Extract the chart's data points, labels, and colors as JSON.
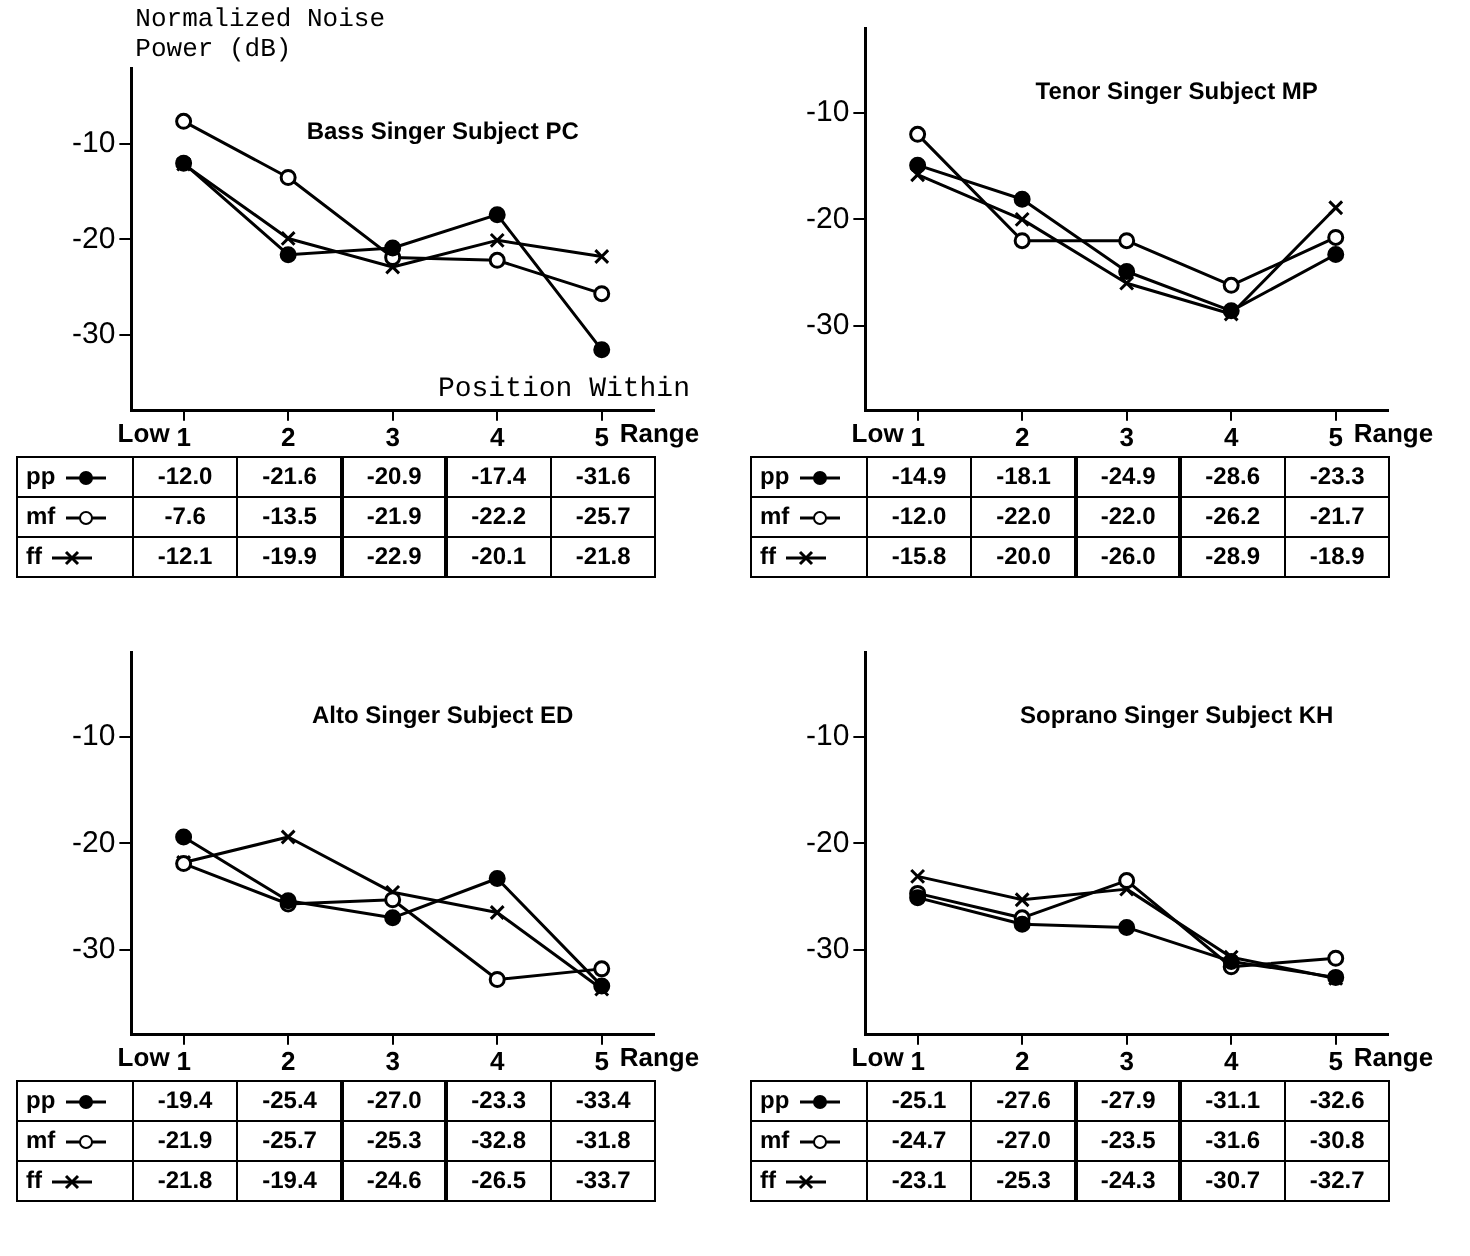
{
  "chart_data": [
    {
      "type": "line",
      "title": "Bass Singer Subject PC",
      "ylabel": "Normalized Noise Power (dB)",
      "xlabel": "Position Within",
      "annotations": [
        "Low",
        "Range"
      ],
      "categories": [
        "1",
        "2",
        "3",
        "4",
        "5"
      ],
      "ylim": [
        -38,
        -2
      ],
      "yticks": [
        -30,
        -20,
        -10
      ],
      "grid": false,
      "legend": "bottom",
      "series": [
        {
          "name": "pp",
          "color": "#000000",
          "marker": "circle",
          "values": [
            -12.0,
            -21.6,
            -20.9,
            -17.4,
            -31.6
          ],
          "value_labels": [
            "-12.0",
            "-21.6",
            "-20.9",
            "-17.4",
            "-31.6"
          ]
        },
        {
          "name": "mf",
          "color": "#000000",
          "marker": "circle",
          "values": [
            -7.6,
            -13.5,
            -21.9,
            -22.2,
            -25.7
          ],
          "value_labels": [
            "-7.6",
            "-13.5",
            "-21.9",
            "-22.2",
            "-25.7"
          ]
        },
        {
          "name": "ff",
          "color": "#000000",
          "marker": "cross",
          "values": [
            -12.1,
            -19.9,
            -22.9,
            -20.1,
            -21.8
          ],
          "value_labels": [
            "-12.1",
            "-19.9",
            "-22.9",
            "-20.1",
            "-21.8"
          ]
        }
      ]
    },
    {
      "type": "line",
      "title": "Tenor Singer Subject MP",
      "annotations": [
        "Low",
        "Range"
      ],
      "categories": [
        "1",
        "2",
        "3",
        "4",
        "5"
      ],
      "ylim": [
        -38,
        -2
      ],
      "yticks": [
        -30,
        -20,
        -10
      ],
      "grid": false,
      "legend": "bottom",
      "series": [
        {
          "name": "pp",
          "color": "#000000",
          "marker": "circle",
          "values": [
            -14.9,
            -18.1,
            -24.9,
            -28.6,
            -23.3
          ],
          "value_labels": [
            "-14.9",
            "-18.1",
            "-24.9",
            "-28.6",
            "-23.3"
          ]
        },
        {
          "name": "mf",
          "color": "#000000",
          "marker": "circle",
          "values": [
            -12.0,
            -22.0,
            -22.0,
            -26.2,
            -21.7
          ],
          "value_labels": [
            "-12.0",
            "-22.0",
            "-22.0",
            "-26.2",
            "-21.7"
          ]
        },
        {
          "name": "ff",
          "color": "#000000",
          "marker": "cross",
          "values": [
            -15.8,
            -20.0,
            -26.0,
            -28.9,
            -18.9
          ],
          "value_labels": [
            "-15.8",
            "-20.0",
            "-26.0",
            "-28.9",
            "-18.9"
          ]
        }
      ]
    },
    {
      "type": "line",
      "title": "Alto Singer Subject ED",
      "annotations": [
        "Low",
        "Range"
      ],
      "categories": [
        "1",
        "2",
        "3",
        "4",
        "5"
      ],
      "ylim": [
        -38,
        -2
      ],
      "yticks": [
        -30,
        -20,
        -10
      ],
      "grid": false,
      "legend": "bottom",
      "series": [
        {
          "name": "pp",
          "color": "#000000",
          "marker": "circle",
          "values": [
            -19.4,
            -25.4,
            -27.0,
            -23.3,
            -33.4
          ],
          "value_labels": [
            "-19.4",
            "-25.4",
            "-27.0",
            "-23.3",
            "-33.4"
          ]
        },
        {
          "name": "mf",
          "color": "#000000",
          "marker": "circle",
          "values": [
            -21.9,
            -25.7,
            -25.3,
            -32.8,
            -31.8
          ],
          "value_labels": [
            "-21.9",
            "-25.7",
            "-25.3",
            "-32.8",
            "-31.8"
          ]
        },
        {
          "name": "ff",
          "color": "#000000",
          "marker": "cross",
          "values": [
            -21.8,
            -19.4,
            -24.6,
            -26.5,
            -33.7
          ],
          "value_labels": [
            "-21.8",
            "-19.4",
            "-24.6",
            "-26.5",
            "-33.7"
          ]
        }
      ]
    },
    {
      "type": "line",
      "title": "Soprano Singer Subject KH",
      "annotations": [
        "Low",
        "Range"
      ],
      "categories": [
        "1",
        "2",
        "3",
        "4",
        "5"
      ],
      "ylim": [
        -38,
        -2
      ],
      "yticks": [
        -30,
        -20,
        -10
      ],
      "grid": false,
      "legend": "bottom",
      "series": [
        {
          "name": "pp",
          "color": "#000000",
          "marker": "circle",
          "values": [
            -25.1,
            -27.6,
            -27.9,
            -31.1,
            -32.6
          ],
          "value_labels": [
            "-25.1",
            "-27.6",
            "-27.9",
            "-31.1",
            "-32.6"
          ]
        },
        {
          "name": "mf",
          "color": "#000000",
          "marker": "circle",
          "values": [
            -24.7,
            -27.0,
            -23.5,
            -31.6,
            -30.8
          ],
          "value_labels": [
            "-24.7",
            "-27.0",
            "-23.5",
            "-31.6",
            "-30.8"
          ]
        },
        {
          "name": "ff",
          "color": "#000000",
          "marker": "cross",
          "values": [
            -23.1,
            -25.3,
            -24.3,
            -30.7,
            -32.7
          ],
          "value_labels": [
            "-23.1",
            "-25.3",
            "-24.3",
            "-30.7",
            "-32.7"
          ]
        }
      ]
    }
  ]
}
